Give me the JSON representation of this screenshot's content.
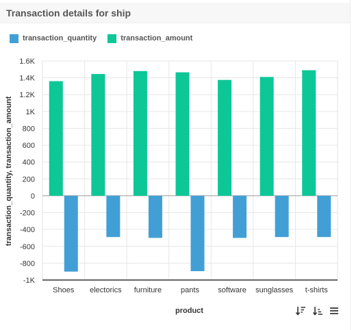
{
  "header": {
    "title": "Transaction details for ship"
  },
  "legend": [
    {
      "label": "transaction_quantity",
      "color": "#429fd6"
    },
    {
      "label": "transaction_amount",
      "color": "#0dc797"
    }
  ],
  "toolbar": {
    "icons": [
      "sort-descending-icon",
      "sort-ascending-icon",
      "menu-icon"
    ]
  },
  "chart_data": {
    "type": "bar",
    "title": "Transaction details for ship",
    "xlabel": "product",
    "ylabel": "transaction_quantity, transaction_amount",
    "categories": [
      "Shoes",
      "electorics",
      "furniture",
      "pants",
      "software",
      "sunglasses",
      "t-shirts"
    ],
    "series": [
      {
        "name": "transaction_amount",
        "color": "#0dc797",
        "values": [
          1360,
          1445,
          1480,
          1465,
          1375,
          1410,
          1490
        ]
      },
      {
        "name": "transaction_quantity",
        "color": "#429fd6",
        "values": [
          -900,
          -490,
          -500,
          -895,
          -500,
          -490,
          -490
        ]
      }
    ],
    "ylim": [
      -1000,
      1600
    ],
    "yticks": [
      1600,
      1400,
      1200,
      1000,
      800,
      600,
      400,
      200,
      0,
      -200,
      -400,
      -600,
      -800,
      -1000
    ],
    "ytick_labels": [
      "1.6K",
      "1.4K",
      "1.2K",
      "1K",
      "800",
      "600",
      "400",
      "200",
      "0",
      "-200",
      "-400",
      "-600",
      "-800",
      "-1K"
    ],
    "grid": true,
    "legend_position": "top-left"
  }
}
